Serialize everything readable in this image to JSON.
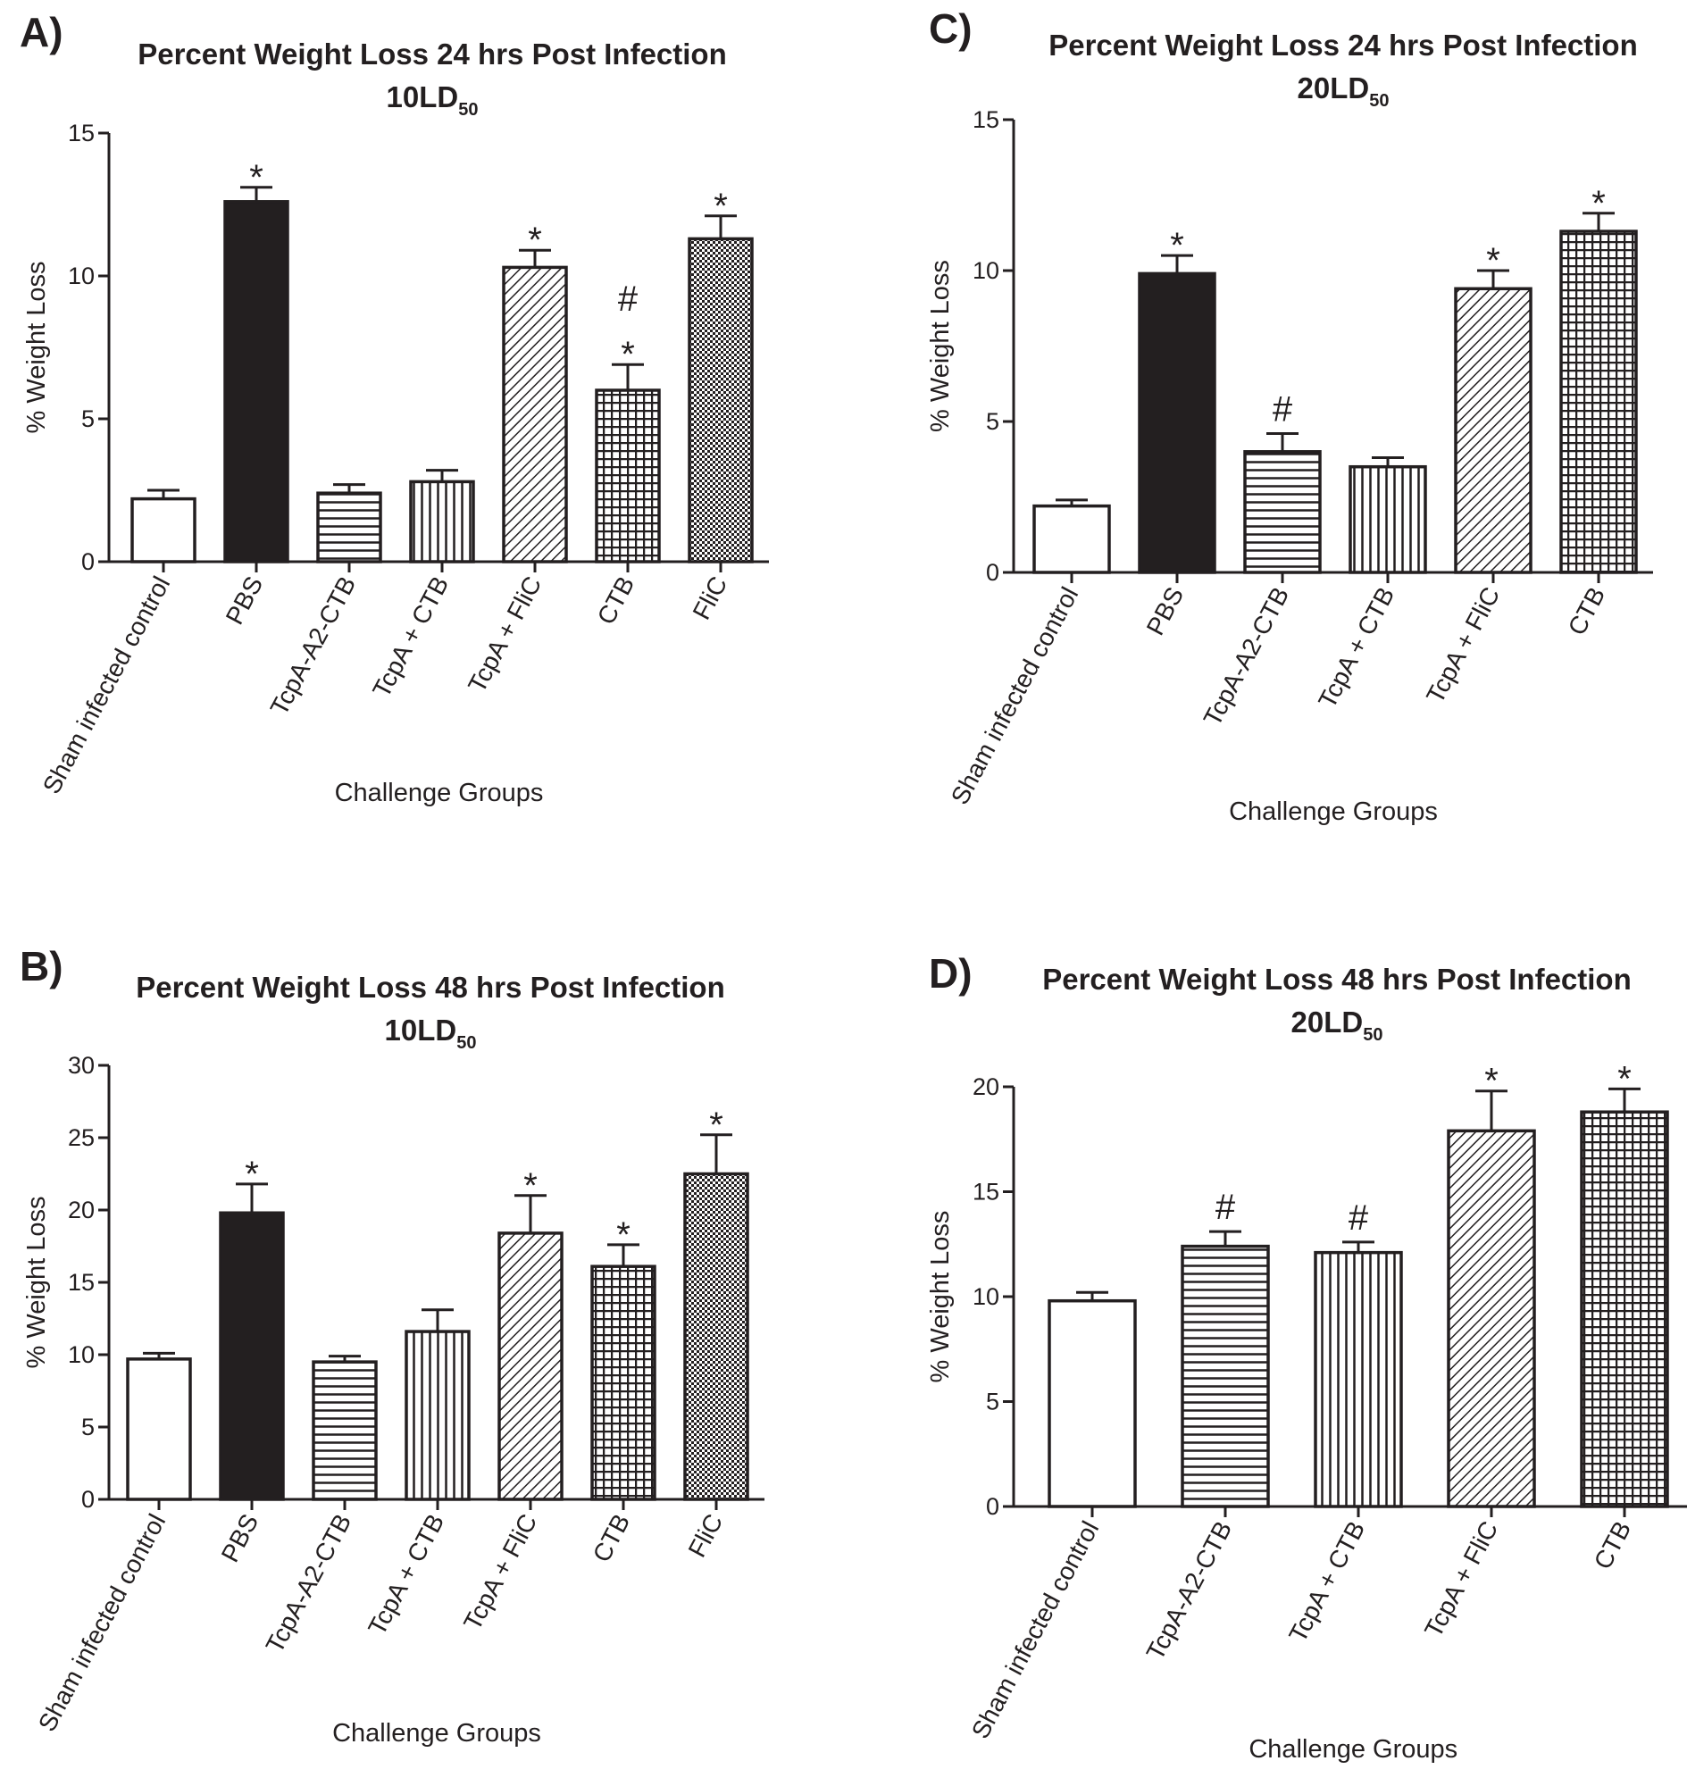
{
  "chart_data": [
    {
      "type": "bar",
      "panel_label": "A)",
      "title": "Percent Weight Loss 24 hrs Post Infection",
      "subtitle": "10LD",
      "subtitle_sub": "50",
      "xlabel": "Challenge Groups",
      "ylabel": "% Weight Loss",
      "ylim": [
        0,
        15
      ],
      "yticks": [
        "0",
        "5",
        "10",
        "15"
      ],
      "categories": [
        "Sham infected control",
        "PBS",
        "TcpA-A2-CTB",
        "TcpA + CTB",
        "TcpA + FliC",
        "CTB",
        "FliC"
      ],
      "values": [
        2.2,
        12.6,
        2.4,
        2.8,
        10.3,
        6.0,
        11.3
      ],
      "errors": [
        0.3,
        0.5,
        0.3,
        0.4,
        0.6,
        0.9,
        0.8
      ],
      "annotations": [
        "",
        "*",
        "",
        "",
        "*",
        "#\n*",
        "*"
      ],
      "patterns": [
        "white",
        "black",
        "hlines",
        "vlines",
        "diag",
        "grid",
        "checker"
      ],
      "grid": false
    },
    {
      "type": "bar",
      "panel_label": "B)",
      "title": "Percent Weight Loss 48 hrs Post Infection",
      "subtitle": "10LD",
      "subtitle_sub": "50",
      "xlabel": "Challenge Groups",
      "ylabel": "% Weight Loss",
      "ylim": [
        0,
        30
      ],
      "yticks": [
        "0",
        "5",
        "10",
        "15",
        "20",
        "25",
        "30"
      ],
      "categories": [
        "Sham infected control",
        "PBS",
        "TcpA-A2-CTB",
        "TcpA + CTB",
        "TcpA + FliC",
        "CTB",
        "FliC"
      ],
      "values": [
        9.7,
        19.8,
        9.5,
        11.6,
        18.4,
        16.1,
        22.5
      ],
      "errors": [
        0.4,
        2.0,
        0.4,
        1.5,
        2.6,
        1.5,
        2.7
      ],
      "annotations": [
        "",
        "*",
        "",
        "",
        "*",
        "*",
        "*"
      ],
      "patterns": [
        "white",
        "black",
        "hlines",
        "vlines",
        "diag",
        "grid",
        "checker"
      ],
      "grid": false
    },
    {
      "type": "bar",
      "panel_label": "C)",
      "title": "Percent Weight Loss 24 hrs Post Infection",
      "subtitle": "20LD",
      "subtitle_sub": "50",
      "xlabel": "Challenge Groups",
      "ylabel": "% Weight Loss",
      "ylim": [
        0,
        15
      ],
      "yticks": [
        "0",
        "5",
        "10",
        "15"
      ],
      "categories": [
        "Sham infected control",
        "PBS",
        "TcpA-A2-CTB",
        "TcpA + CTB",
        "TcpA + FliC",
        "CTB"
      ],
      "values": [
        2.2,
        9.9,
        4.0,
        3.5,
        9.4,
        11.3
      ],
      "errors": [
        0.2,
        0.6,
        0.6,
        0.3,
        0.6,
        0.6
      ],
      "annotations": [
        "",
        "*",
        "#",
        "",
        "*",
        "*"
      ],
      "patterns": [
        "white",
        "black",
        "hlines",
        "vlines",
        "diag",
        "grid"
      ],
      "grid": false
    },
    {
      "type": "bar",
      "panel_label": "D)",
      "title": "Percent Weight Loss 48 hrs Post Infection",
      "subtitle": "20LD",
      "subtitle_sub": "50",
      "xlabel": "Challenge Groups",
      "ylabel": "% Weight Loss",
      "ylim": [
        0,
        20
      ],
      "yticks": [
        "0",
        "5",
        "10",
        "15",
        "20"
      ],
      "categories": [
        "Sham infected control",
        "TcpA-A2-CTB",
        "TcpA + CTB",
        "TcpA + FliC",
        "CTB"
      ],
      "values": [
        9.8,
        12.4,
        12.1,
        17.9,
        18.8
      ],
      "errors": [
        0.4,
        0.7,
        0.5,
        1.9,
        1.1
      ],
      "annotations": [
        "",
        "#",
        "#",
        "*",
        "*"
      ],
      "patterns": [
        "white",
        "hlines",
        "vlines",
        "diag",
        "grid"
      ],
      "grid": false
    }
  ]
}
